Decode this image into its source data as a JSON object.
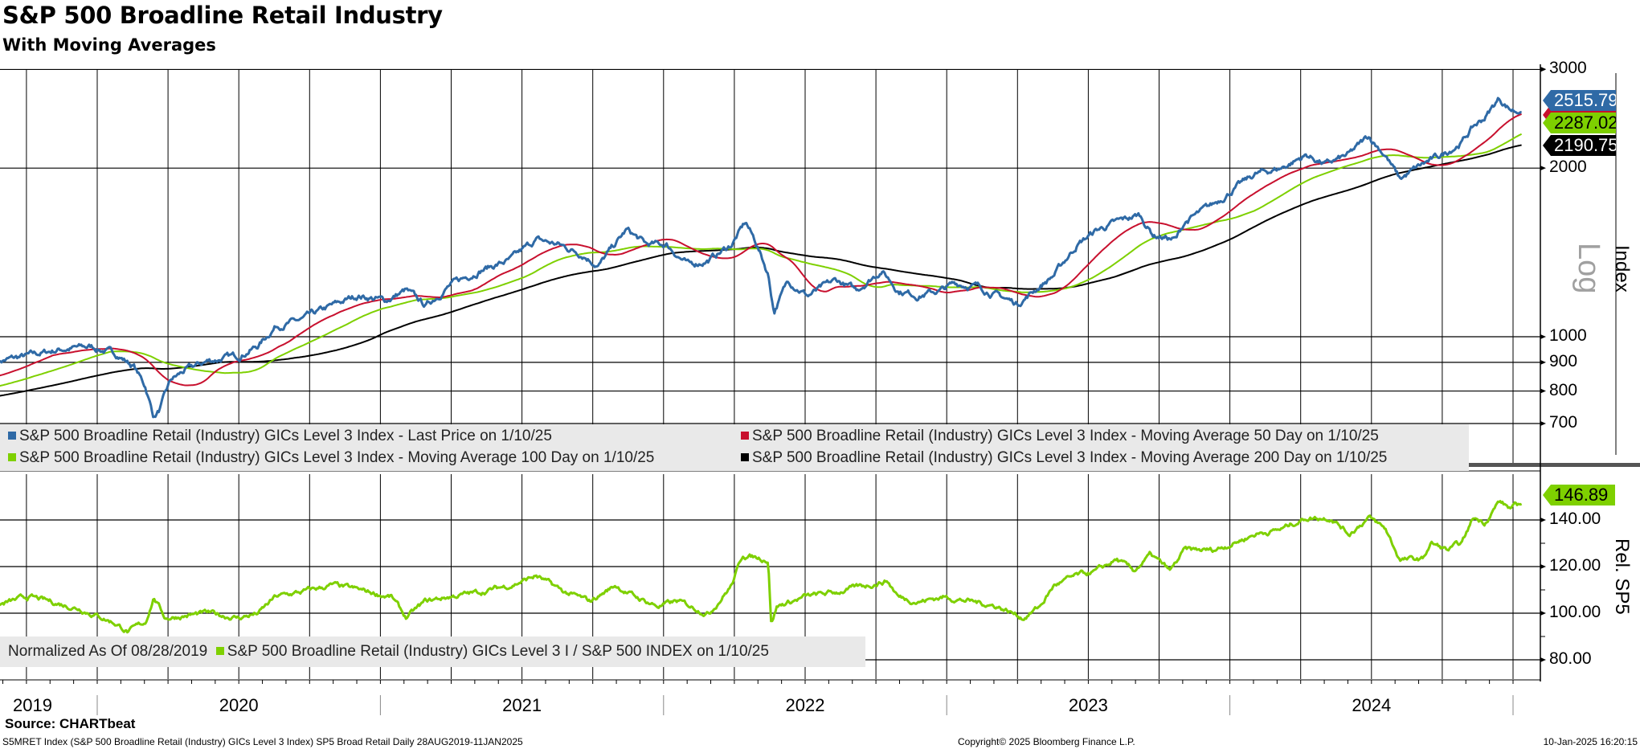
{
  "header": {
    "title": "S&P 500 Broadline Retail Industry",
    "subtitle": "With Moving Averages"
  },
  "colors": {
    "last": "#2f6aa6",
    "ma50": "#c8102e",
    "ma100": "#7ed000",
    "ma200": "#000000",
    "legend_bg": "#e9e9e9"
  },
  "chart_data": [
    {
      "type": "line",
      "title": "S&P 500 Broadline Retail Industry",
      "scale": "log",
      "scale_label": "Log",
      "ylabel": "Index",
      "yticks": [
        3000,
        2000,
        1000,
        900,
        800,
        700
      ],
      "ylim": [
        640,
        3150
      ],
      "xlim": [
        2019.65,
        2025.03
      ],
      "last_values": {
        "last": "2515.79",
        "ma100": "2287.02",
        "ma200": "2190.75"
      },
      "ma_start_values": {
        "ma50": 850,
        "ma100": 815,
        "ma200": 783
      },
      "legend": [
        "S&P 500 Broadline Retail (Industry) GICs Level 3 Index - Last Price on 1/10/25",
        "S&P 500 Broadline Retail (Industry) GICs Level 3 Index - Moving Average 50 Day on 1/10/25",
        "S&P 500 Broadline Retail (Industry) GICs Level 3 Index - Moving Average 100 Day on 1/10/25",
        "S&P 500 Broadline Retail (Industry) GICs Level 3 Index - Moving Average 200 Day on 1/10/25"
      ],
      "series": [
        {
          "name": "Last Price",
          "points": [
            [
              2019.65,
              905
            ],
            [
              2019.76,
              925
            ],
            [
              2019.87,
              950
            ],
            [
              2019.98,
              960
            ],
            [
              2020.07,
              930
            ],
            [
              2020.13,
              885
            ],
            [
              2020.17,
              815
            ],
            [
              2020.2,
              720
            ],
            [
              2020.22,
              740
            ],
            [
              2020.26,
              835
            ],
            [
              2020.31,
              870
            ],
            [
              2020.39,
              905
            ],
            [
              2020.5,
              925
            ],
            [
              2020.57,
              965
            ],
            [
              2020.63,
              1045
            ],
            [
              2020.72,
              1070
            ],
            [
              2020.83,
              1135
            ],
            [
              2020.92,
              1185
            ],
            [
              2021.02,
              1160
            ],
            [
              2021.09,
              1210
            ],
            [
              2021.16,
              1135
            ],
            [
              2021.24,
              1230
            ],
            [
              2021.35,
              1315
            ],
            [
              2021.46,
              1370
            ],
            [
              2021.55,
              1490
            ],
            [
              2021.63,
              1460
            ],
            [
              2021.72,
              1400
            ],
            [
              2021.77,
              1340
            ],
            [
              2021.87,
              1550
            ],
            [
              2021.94,
              1460
            ],
            [
              2022.01,
              1460
            ],
            [
              2022.09,
              1340
            ],
            [
              2022.16,
              1370
            ],
            [
              2022.24,
              1460
            ],
            [
              2022.29,
              1600
            ],
            [
              2022.33,
              1460
            ],
            [
              2022.37,
              1290
            ],
            [
              2022.39,
              1110
            ],
            [
              2022.44,
              1260
            ],
            [
              2022.51,
              1185
            ],
            [
              2022.61,
              1260
            ],
            [
              2022.68,
              1210
            ],
            [
              2022.77,
              1315
            ],
            [
              2022.83,
              1210
            ],
            [
              2022.9,
              1185
            ],
            [
              2022.98,
              1210
            ],
            [
              2023.03,
              1245
            ],
            [
              2023.11,
              1230
            ],
            [
              2023.18,
              1185
            ],
            [
              2023.25,
              1145
            ],
            [
              2023.31,
              1210
            ],
            [
              2023.38,
              1290
            ],
            [
              2023.46,
              1460
            ],
            [
              2023.53,
              1550
            ],
            [
              2023.6,
              1600
            ],
            [
              2023.68,
              1650
            ],
            [
              2023.73,
              1520
            ],
            [
              2023.81,
              1490
            ],
            [
              2023.84,
              1600
            ],
            [
              2023.94,
              1720
            ],
            [
              2024.01,
              1830
            ],
            [
              2024.09,
              1950
            ],
            [
              2024.18,
              2000
            ],
            [
              2024.27,
              2110
            ],
            [
              2024.34,
              2030
            ],
            [
              2024.42,
              2110
            ],
            [
              2024.49,
              2280
            ],
            [
              2024.55,
              2110
            ],
            [
              2024.6,
              1910
            ],
            [
              2024.68,
              2030
            ],
            [
              2024.75,
              2110
            ],
            [
              2024.82,
              2230
            ],
            [
              2024.86,
              2370
            ],
            [
              2024.9,
              2460
            ],
            [
              2024.95,
              2660
            ],
            [
              2024.99,
              2550
            ],
            [
              2025.03,
              2515.79
            ]
          ]
        }
      ]
    },
    {
      "type": "line",
      "ylabel": "Rel. SP5",
      "yticks": [
        "140.00",
        "120.00",
        "100.00",
        "80.00"
      ],
      "ylim": [
        72,
        152
      ],
      "last_value": "146.89",
      "legend_prefix": "Normalized As Of 08/28/2019",
      "legend": [
        "S&P 500 Broadline Retail (Industry) GICs Level 3 I / S&P 500 INDEX on 1/10/25"
      ],
      "series": [
        {
          "name": "Relative to S&P 500",
          "points": [
            [
              2019.65,
              103.6
            ],
            [
              2019.76,
              107
            ],
            [
              2019.83,
              105
            ],
            [
              2019.94,
              102
            ],
            [
              2020.06,
              96
            ],
            [
              2020.11,
              92
            ],
            [
              2020.17,
              96
            ],
            [
              2020.2,
              107
            ],
            [
              2020.24,
              98
            ],
            [
              2020.39,
              100
            ],
            [
              2020.5,
              98
            ],
            [
              2020.57,
              100
            ],
            [
              2020.63,
              107
            ],
            [
              2020.72,
              109
            ],
            [
              2020.83,
              112
            ],
            [
              2020.92,
              110
            ],
            [
              2021.04,
              107
            ],
            [
              2021.09,
              98
            ],
            [
              2021.16,
              105
            ],
            [
              2021.24,
              107
            ],
            [
              2021.35,
              109
            ],
            [
              2021.46,
              112
            ],
            [
              2021.55,
              116
            ],
            [
              2021.65,
              109
            ],
            [
              2021.74,
              105
            ],
            [
              2021.83,
              112
            ],
            [
              2021.9,
              107
            ],
            [
              2021.98,
              103
            ],
            [
              2022.05,
              105
            ],
            [
              2022.16,
              100
            ],
            [
              2022.24,
              112
            ],
            [
              2022.28,
              125
            ],
            [
              2022.37,
              123
            ],
            [
              2022.38,
              96
            ],
            [
              2022.4,
              103
            ],
            [
              2022.5,
              107
            ],
            [
              2022.61,
              109
            ],
            [
              2022.72,
              112
            ],
            [
              2022.79,
              114
            ],
            [
              2022.83,
              107
            ],
            [
              2022.9,
              105
            ],
            [
              2022.99,
              107
            ],
            [
              2023.09,
              105
            ],
            [
              2023.18,
              103
            ],
            [
              2023.27,
              98
            ],
            [
              2023.33,
              103
            ],
            [
              2023.38,
              112
            ],
            [
              2023.46,
              116
            ],
            [
              2023.53,
              118
            ],
            [
              2023.6,
              123
            ],
            [
              2023.66,
              118
            ],
            [
              2023.72,
              125
            ],
            [
              2023.79,
              118
            ],
            [
              2023.84,
              127
            ],
            [
              2023.94,
              127
            ],
            [
              2024.01,
              130
            ],
            [
              2024.09,
              134
            ],
            [
              2024.18,
              136
            ],
            [
              2024.27,
              141
            ],
            [
              2024.36,
              141
            ],
            [
              2024.42,
              134
            ],
            [
              2024.49,
              141
            ],
            [
              2024.55,
              136
            ],
            [
              2024.6,
              123
            ],
            [
              2024.68,
              123
            ],
            [
              2024.71,
              130
            ],
            [
              2024.77,
              127
            ],
            [
              2024.82,
              130
            ],
            [
              2024.86,
              141
            ],
            [
              2024.9,
              139
            ],
            [
              2024.95,
              148
            ],
            [
              2024.99,
              145
            ],
            [
              2025.03,
              146.89
            ]
          ]
        }
      ]
    }
  ],
  "xaxis": {
    "years": [
      "2019",
      "2020",
      "2021",
      "2022",
      "2023",
      "2024"
    ]
  },
  "footer": {
    "source": "Source: CHARTbeat",
    "description": "S5MRET Index (S&P 500 Broadline Retail (Industry) GICs Level 3 Index) SP5 Broad Retail  Daily 28AUG2019-11JAN2025",
    "copyright": "Copyright© 2025 Bloomberg Finance L.P.",
    "timestamp": "10-Jan-2025 16:20:15"
  }
}
